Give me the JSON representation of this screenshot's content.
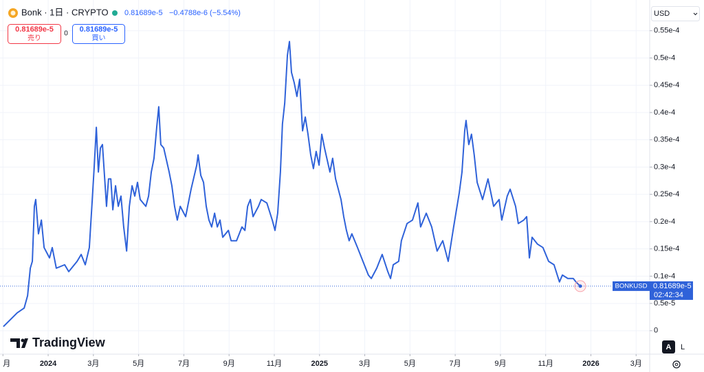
{
  "header": {
    "symbol": "Bonk · 1日 · CRYPTO",
    "price": "0.81689e-5",
    "change": "−0.4788e-6 (−5.54%)",
    "sell_price": "0.81689e-5",
    "sell_label": "売り",
    "spread": "0",
    "buy_price": "0.81689e-5",
    "buy_label": "買い",
    "currency": "USD",
    "logo": "TradingView",
    "auto": "A",
    "log": "L"
  },
  "chart_data": {
    "type": "line",
    "x": [
      -1.98,
      -1.37,
      -1.06,
      -0.91,
      -0.79,
      -0.7,
      -0.61,
      -0.55,
      -0.43,
      -0.3,
      -0.18,
      0.06,
      0.18,
      0.36,
      0.73,
      0.91,
      1.28,
      1.46,
      1.64,
      1.82,
      1.95,
      2.04,
      2.13,
      2.22,
      2.31,
      2.4,
      2.58,
      2.67,
      2.77,
      2.86,
      2.98,
      3.1,
      3.22,
      3.34,
      3.47,
      3.59,
      3.71,
      3.83,
      3.95,
      4.07,
      4.32,
      4.44,
      4.56,
      4.68,
      4.8,
      4.89,
      4.98,
      5.11,
      5.35,
      5.47,
      5.59,
      5.71,
      5.84,
      6.08,
      6.32,
      6.57,
      6.63,
      6.75,
      6.87,
      6.99,
      7.11,
      7.23,
      7.36,
      7.48,
      7.6,
      7.72,
      7.97,
      8.09,
      8.33,
      8.57,
      8.7,
      8.82,
      8.94,
      9.06,
      9.3,
      9.42,
      9.67,
      9.91,
      10.03,
      10.15,
      10.27,
      10.36,
      10.46,
      10.58,
      10.67,
      10.76,
      10.88,
      11.0,
      11.12,
      11.25,
      11.37,
      11.49,
      11.61,
      11.73,
      11.85,
      11.98,
      12.1,
      12.22,
      12.46,
      12.58,
      12.71,
      12.95,
      13.07,
      13.19,
      13.31,
      13.43,
      13.68,
      13.92,
      14.16,
      14.29,
      14.53,
      14.77,
      15.02,
      15.14,
      15.26,
      15.5,
      15.62,
      15.87,
      16.11,
      16.35,
      16.47,
      16.72,
      16.96,
      17.2,
      17.45,
      17.69,
      17.93,
      18.18,
      18.3,
      18.42,
      18.48,
      18.6,
      18.72,
      18.84,
      18.97,
      19.21,
      19.45,
      19.7,
      19.94,
      20.06,
      20.3,
      20.43,
      20.67,
      20.79,
      21.03,
      21.16,
      21.28,
      21.4,
      21.64,
      21.88,
      22.13,
      22.37,
      22.61,
      22.74,
      22.98,
      23.22,
      23.34,
      23.53
    ],
    "series": [
      {
        "name": "BONKUSD",
        "color": "#2f62d9",
        "values": [
          7.6e-07,
          3.27e-06,
          4.16e-06,
          6.42e-06,
          1.146e-05,
          1.272e-05,
          2.28e-05,
          2.405e-05,
          1.776e-05,
          2.028e-05,
          1.524e-05,
          1.335e-05,
          1.524e-05,
          1.146e-05,
          1.209e-05,
          1.083e-05,
          1.272e-05,
          1.398e-05,
          1.209e-05,
          1.524e-05,
          2.405e-05,
          3.035e-05,
          3.728e-05,
          2.909e-05,
          3.35e-05,
          3.413e-05,
          2.28e-05,
          2.783e-05,
          2.783e-05,
          2.217e-05,
          2.657e-05,
          2.28e-05,
          2.468e-05,
          1.902e-05,
          1.461e-05,
          2.28e-05,
          2.657e-05,
          2.468e-05,
          2.72e-05,
          2.405e-05,
          2.28e-05,
          2.468e-05,
          2.909e-05,
          3.161e-05,
          3.728e-05,
          4.106e-05,
          3.413e-05,
          3.35e-05,
          2.909e-05,
          2.657e-05,
          2.28e-05,
          2.028e-05,
          2.28e-05,
          2.091e-05,
          2.594e-05,
          3.035e-05,
          3.224e-05,
          2.846e-05,
          2.72e-05,
          2.28e-05,
          2.028e-05,
          1.902e-05,
          2.154e-05,
          1.902e-05,
          2.028e-05,
          1.713e-05,
          1.839e-05,
          1.65e-05,
          1.65e-05,
          1.902e-05,
          1.839e-05,
          2.28e-05,
          2.405e-05,
          2.091e-05,
          2.28e-05,
          2.405e-05,
          2.342e-05,
          2.028e-05,
          1.839e-05,
          2.154e-05,
          2.909e-05,
          3.791e-05,
          4.169e-05,
          5.05e-05,
          5.302e-05,
          4.735e-05,
          4.546e-05,
          4.295e-05,
          4.609e-05,
          3.665e-05,
          3.917e-05,
          3.602e-05,
          3.224e-05,
          2.972e-05,
          3.287e-05,
          3.035e-05,
          3.602e-05,
          3.35e-05,
          2.909e-05,
          3.161e-05,
          2.783e-05,
          2.405e-05,
          2.091e-05,
          1.839e-05,
          1.65e-05,
          1.776e-05,
          1.524e-05,
          1.272e-05,
          1.02e-05,
          9.57e-06,
          1.146e-05,
          1.398e-05,
          1.083e-05,
          9.57e-06,
          1.209e-05,
          1.272e-05,
          1.65e-05,
          1.965e-05,
          2.028e-05,
          2.342e-05,
          1.902e-05,
          2.154e-05,
          1.902e-05,
          1.461e-05,
          1.65e-05,
          1.272e-05,
          1.902e-05,
          2.531e-05,
          2.909e-05,
          3.665e-05,
          3.854e-05,
          3.413e-05,
          3.602e-05,
          3.224e-05,
          2.72e-05,
          2.405e-05,
          2.783e-05,
          2.28e-05,
          2.405e-05,
          2.028e-05,
          2.468e-05,
          2.594e-05,
          2.28e-05,
          1.965e-05,
          2.028e-05,
          2.091e-05,
          1.335e-05,
          1.713e-05,
          1.587e-05,
          1.524e-05,
          1.272e-05,
          1.209e-05,
          8.94e-06,
          1.02e-05,
          9.57e-06,
          9.57e-06,
          8.94e-06,
          8.1689e-06
        ]
      }
    ],
    "xlim": [
      -2.13,
      26.6
    ],
    "xticks": [
      {
        "value": -2,
        "label": "月"
      },
      {
        "value": 0,
        "label": "2024"
      },
      {
        "value": 2,
        "label": "3月"
      },
      {
        "value": 4,
        "label": "5月"
      },
      {
        "value": 6,
        "label": "7月"
      },
      {
        "value": 8,
        "label": "9月"
      },
      {
        "value": 10,
        "label": "11月"
      },
      {
        "value": 12,
        "label": "2025"
      },
      {
        "value": 14,
        "label": "3月"
      },
      {
        "value": 16,
        "label": "5月"
      },
      {
        "value": 18,
        "label": "7月"
      },
      {
        "value": 20,
        "label": "9月"
      },
      {
        "value": 22,
        "label": "11月"
      },
      {
        "value": 24,
        "label": "2026"
      },
      {
        "value": 26,
        "label": "3月"
      }
    ],
    "ylim": [
      -4.3e-06,
      6e-05
    ],
    "yticks": [
      {
        "value": 5.5e-05,
        "label": "0.55e-4"
      },
      {
        "value": 5e-05,
        "label": "0.5e-4"
      },
      {
        "value": 4.5e-05,
        "label": "0.45e-4"
      },
      {
        "value": 4e-05,
        "label": "0.4e-4"
      },
      {
        "value": 3.5e-05,
        "label": "0.35e-4"
      },
      {
        "value": 3e-05,
        "label": "0.3e-4"
      },
      {
        "value": 2.5e-05,
        "label": "0.25e-4"
      },
      {
        "value": 2e-05,
        "label": "0.2e-4"
      },
      {
        "value": 1.5e-05,
        "label": "0.15e-4"
      },
      {
        "value": 1e-05,
        "label": "0.1e-4"
      },
      {
        "value": 5e-06,
        "label": "0.5e-5"
      },
      0
    ],
    "last_price": {
      "value": 8.1689e-06,
      "label": "0.81689e-5"
    },
    "countdown": "02:42:34",
    "grid": true
  }
}
